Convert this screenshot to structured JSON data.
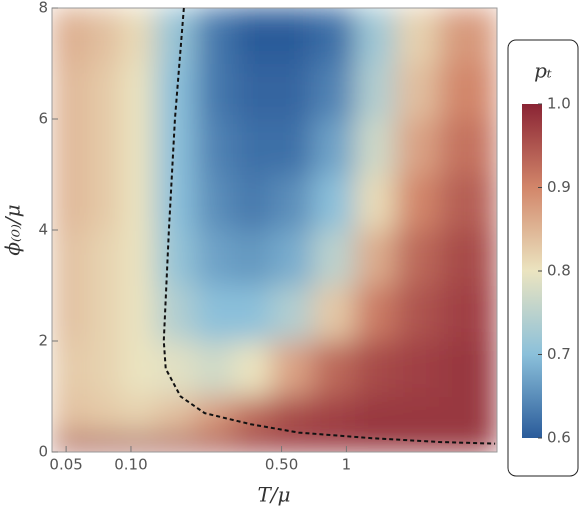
{
  "chart_data": {
    "type": "heatmap",
    "x_label": "T/μ",
    "y_label": "ϕ₍₀₎/μ",
    "log_x": true,
    "xlim": [
      0.043,
      5
    ],
    "ylim": [
      0,
      8
    ],
    "xticks": [
      0.05,
      {
        "value": 0.1,
        "label": "0.10"
      },
      {
        "value": 0.5,
        "label": "0.50"
      },
      1
    ],
    "yticks": [
      0,
      2,
      4,
      6,
      8
    ],
    "x_edges": [
      0.043,
      0.06,
      0.09,
      0.13,
      0.2,
      0.3,
      0.45,
      0.7,
      1.1,
      1.7,
      2.7,
      5
    ],
    "y_edges": [
      0,
      0.3,
      1,
      2,
      3,
      4,
      5,
      6,
      7,
      8
    ],
    "z": [
      [
        0.96,
        0.97,
        0.97,
        0.97,
        0.97,
        0.98,
        0.98,
        0.98,
        0.98,
        0.98,
        0.98
      ],
      [
        0.84,
        0.83,
        0.82,
        0.84,
        0.88,
        0.93,
        0.96,
        0.97,
        0.98,
        0.98,
        0.98
      ],
      [
        0.83,
        0.82,
        0.8,
        0.79,
        0.77,
        0.8,
        0.87,
        0.93,
        0.96,
        0.97,
        0.98
      ],
      [
        0.84,
        0.82,
        0.8,
        0.74,
        0.7,
        0.7,
        0.74,
        0.83,
        0.91,
        0.95,
        0.97
      ],
      [
        0.84,
        0.82,
        0.8,
        0.71,
        0.67,
        0.66,
        0.68,
        0.75,
        0.86,
        0.93,
        0.96
      ],
      [
        0.85,
        0.83,
        0.8,
        0.7,
        0.65,
        0.63,
        0.65,
        0.7,
        0.81,
        0.9,
        0.94
      ],
      [
        0.85,
        0.83,
        0.8,
        0.7,
        0.64,
        0.62,
        0.62,
        0.67,
        0.77,
        0.87,
        0.92
      ],
      [
        0.85,
        0.83,
        0.8,
        0.7,
        0.63,
        0.61,
        0.61,
        0.64,
        0.74,
        0.84,
        0.9
      ],
      [
        0.86,
        0.84,
        0.81,
        0.71,
        0.63,
        0.6,
        0.6,
        0.62,
        0.72,
        0.82,
        0.88
      ]
    ],
    "boundary": {
      "x": [
        0.176,
        0.16,
        0.15,
        0.142,
        0.145,
        0.17,
        0.22,
        0.36,
        0.6,
        1.3,
        2.7,
        4.9
      ],
      "y": [
        8,
        6,
        4,
        2,
        1.5,
        1,
        0.7,
        0.5,
        0.35,
        0.25,
        0.18,
        0.15
      ]
    },
    "colorbar": {
      "title": "pₜ",
      "zlim": [
        0.6,
        1.0
      ],
      "ticks": [
        0.6,
        0.7,
        0.8,
        0.9,
        {
          "value": 1,
          "label": "1.0"
        }
      ],
      "colormap": [
        "#2a5b9a",
        "#8bc0da",
        "#ebe4c0",
        "#d2866a",
        "#8a2434"
      ]
    }
  }
}
